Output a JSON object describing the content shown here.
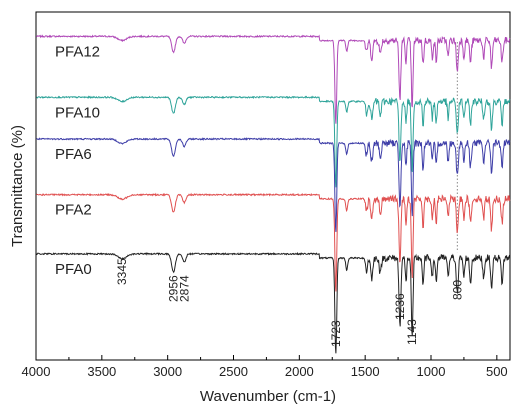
{
  "chart_data": {
    "type": "line",
    "title": "",
    "xlabel": "Wavenumber (cm-1)",
    "ylabel": "Transmittance (%)",
    "xlim": [
      4000,
      400
    ],
    "x_reversed": true,
    "x_ticks": [
      "4000",
      "3500",
      "3000",
      "2500",
      "2000",
      "1500",
      "1000",
      "500"
    ],
    "y_ticks_shown": false,
    "grid": false,
    "legend": "inline labels at left",
    "reference_lines": [
      {
        "x": 800,
        "style": "dotted"
      }
    ],
    "series": [
      {
        "name": "PFA12",
        "color": "#b04ab8",
        "baseline": 0.93
      },
      {
        "name": "PFA10",
        "color": "#2fa49a",
        "baseline": 0.755
      },
      {
        "name": "PFA6",
        "color": "#3e3ea8",
        "baseline": 0.635
      },
      {
        "name": "PFA2",
        "color": "#e05050",
        "baseline": 0.475
      },
      {
        "name": "PFA0",
        "color": "#222222",
        "baseline": 0.305
      }
    ],
    "peak_labels": [
      {
        "text": "3345",
        "x": 3345
      },
      {
        "text": "2956",
        "x": 2956
      },
      {
        "text": "2874",
        "x": 2874
      },
      {
        "text": "1723",
        "x": 1723
      },
      {
        "text": "1236",
        "x": 1236
      },
      {
        "text": "1143",
        "x": 1143
      },
      {
        "text": "800",
        "x": 800
      }
    ],
    "bands": [
      {
        "x": 3345,
        "w": 45,
        "d": 0.012
      },
      {
        "x": 2956,
        "w": 20,
        "d": 0.045
      },
      {
        "x": 2874,
        "w": 18,
        "d": 0.02
      },
      {
        "x": 1723,
        "w": 10,
        "d": 0.24
      },
      {
        "x": 1640,
        "w": 10,
        "d": 0.03
      },
      {
        "x": 1490,
        "w": 10,
        "d": 0.035
      },
      {
        "x": 1450,
        "w": 12,
        "d": 0.05
      },
      {
        "x": 1385,
        "w": 10,
        "d": 0.04
      },
      {
        "x": 1236,
        "w": 10,
        "d": 0.17
      },
      {
        "x": 1190,
        "w": 8,
        "d": 0.06
      },
      {
        "x": 1143,
        "w": 9,
        "d": 0.2
      },
      {
        "x": 1060,
        "w": 8,
        "d": 0.07
      },
      {
        "x": 990,
        "w": 8,
        "d": 0.05
      },
      {
        "x": 960,
        "w": 8,
        "d": 0.06
      },
      {
        "x": 870,
        "w": 8,
        "d": 0.05
      },
      {
        "x": 800,
        "w": 10,
        "d": 0.09
      },
      {
        "x": 750,
        "w": 8,
        "d": 0.05
      },
      {
        "x": 700,
        "w": 10,
        "d": 0.06
      },
      {
        "x": 600,
        "w": 9,
        "d": 0.05
      },
      {
        "x": 540,
        "w": 9,
        "d": 0.08
      },
      {
        "x": 460,
        "w": 10,
        "d": 0.06
      }
    ]
  }
}
